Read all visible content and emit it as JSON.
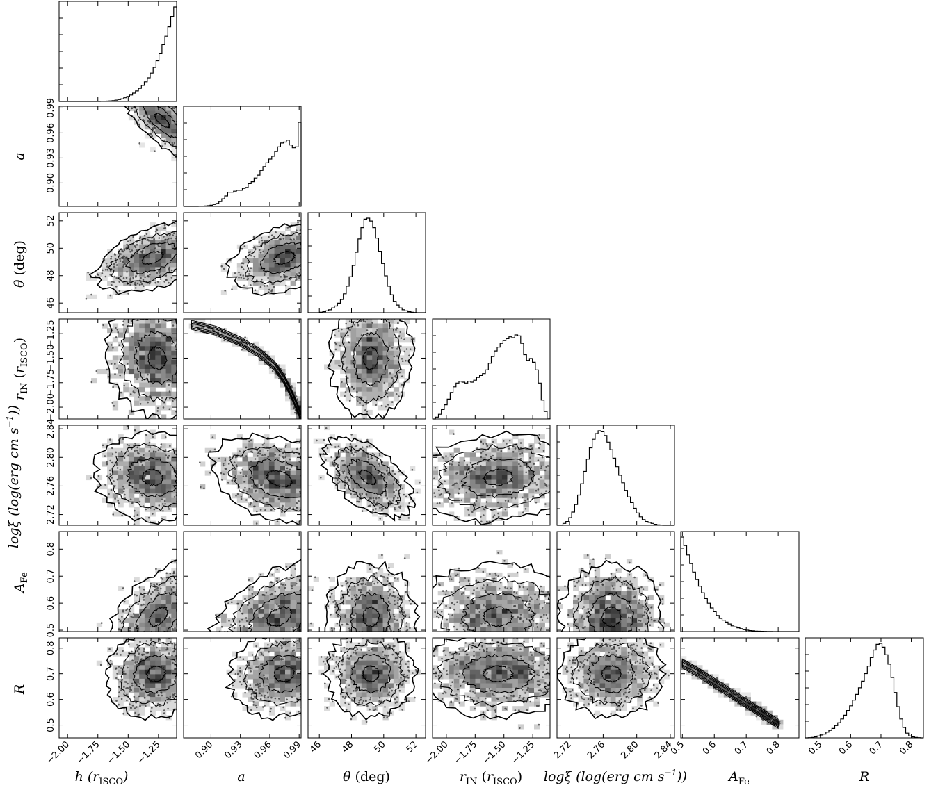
{
  "chart_data": {
    "type": "corner",
    "grid": false,
    "parameters": [
      {
        "key": "h",
        "label": "h (r_ISCO)",
        "range": [
          -2.07,
          -1.1
        ],
        "ticks": [
          -2.0,
          -1.75,
          -1.5,
          -1.25
        ],
        "tick_labels": [
          "−2.00",
          "−1.75",
          "−1.50",
          "−1.25"
        ],
        "hist": [
          0.0,
          0.0,
          0.0,
          0.0,
          0.0,
          0.0,
          0.0,
          0.0,
          0.0,
          0.0,
          0.0,
          0.0,
          0.0,
          0.0,
          0.002,
          0.002,
          0.004,
          0.006,
          0.009,
          0.014,
          0.02,
          0.028,
          0.039,
          0.052,
          0.068,
          0.088,
          0.111,
          0.138,
          0.17,
          0.207,
          0.25,
          0.3,
          0.36,
          0.43,
          0.51,
          0.6,
          0.69,
          0.79,
          0.9,
          1.0
        ]
      },
      {
        "key": "a",
        "label": "a",
        "range": [
          0.872,
          0.992
        ],
        "ticks": [
          0.9,
          0.93,
          0.96,
          0.99
        ],
        "tick_labels": [
          "0.90",
          "0.93",
          "0.96",
          "0.99"
        ],
        "hist": [
          0.0,
          0.0,
          0.0,
          0.0,
          0.0,
          0.002,
          0.003,
          0.005,
          0.007,
          0.012,
          0.02,
          0.03,
          0.05,
          0.08,
          0.11,
          0.15,
          0.15,
          0.16,
          0.17,
          0.17,
          0.19,
          0.2,
          0.24,
          0.26,
          0.3,
          0.33,
          0.38,
          0.42,
          0.46,
          0.5,
          0.53,
          0.58,
          0.63,
          0.67,
          0.68,
          0.7,
          0.65,
          0.62,
          0.63,
          0.89
        ]
      },
      {
        "key": "theta",
        "label": "θ (deg)",
        "range": [
          45.3,
          52.6
        ],
        "ticks": [
          46,
          48,
          50,
          52
        ],
        "tick_labels": [
          "46",
          "48",
          "50",
          "52"
        ],
        "hist": [
          0.0,
          0.0,
          0.0,
          0.0,
          0.005,
          0.01,
          0.02,
          0.03,
          0.05,
          0.07,
          0.1,
          0.14,
          0.2,
          0.28,
          0.38,
          0.5,
          0.64,
          0.78,
          0.9,
          0.99,
          1.0,
          0.97,
          0.9,
          0.79,
          0.65,
          0.52,
          0.39,
          0.28,
          0.19,
          0.12,
          0.08,
          0.05,
          0.03,
          0.02,
          0.01,
          0.005,
          0.002,
          0.0,
          0.0,
          0.0
        ]
      },
      {
        "key": "rin",
        "label": "r_IN (r_ISCO)",
        "range": [
          -2.12,
          -1.1
        ],
        "ticks": [
          -2.0,
          -1.75,
          -1.5,
          -1.25
        ],
        "tick_labels": [
          "−2.00",
          "−1.75",
          "−1.50",
          "−1.25"
        ],
        "hist": [
          0.0,
          0.02,
          0.05,
          0.1,
          0.15,
          0.21,
          0.28,
          0.34,
          0.38,
          0.4,
          0.39,
          0.38,
          0.4,
          0.39,
          0.41,
          0.44,
          0.46,
          0.48,
          0.52,
          0.59,
          0.66,
          0.72,
          0.76,
          0.8,
          0.83,
          0.85,
          0.87,
          0.86,
          0.89,
          0.88,
          0.8,
          0.68,
          0.62,
          0.64,
          0.6,
          0.52,
          0.38,
          0.2,
          0.08,
          0.01
        ]
      },
      {
        "key": "xi",
        "label": "logξ (log(erg cm s⁻¹))",
        "range": [
          2.705,
          2.845
        ],
        "ticks": [
          2.72,
          2.76,
          2.8,
          2.84
        ],
        "tick_labels": [
          "2.72",
          "2.76",
          "2.80",
          "2.84"
        ],
        "hist": [
          0.0,
          0.0,
          0.02,
          0.04,
          0.08,
          0.14,
          0.22,
          0.32,
          0.44,
          0.57,
          0.7,
          0.82,
          0.91,
          0.97,
          1.0,
          0.99,
          0.95,
          0.88,
          0.8,
          0.71,
          0.62,
          0.53,
          0.45,
          0.37,
          0.3,
          0.24,
          0.18,
          0.13,
          0.09,
          0.06,
          0.04,
          0.03,
          0.02,
          0.01,
          0.005,
          0.002,
          0.0,
          0.0,
          0.0,
          0.0
        ]
      },
      {
        "key": "afe",
        "label": "A_Fe",
        "range": [
          0.495,
          0.865
        ],
        "ticks": [
          0.5,
          0.6,
          0.7,
          0.8
        ],
        "tick_labels": [
          "0.5",
          "0.6",
          "0.7",
          "0.8"
        ],
        "hist": [
          1.0,
          0.91,
          0.81,
          0.72,
          0.63,
          0.55,
          0.48,
          0.41,
          0.35,
          0.3,
          0.25,
          0.21,
          0.17,
          0.14,
          0.12,
          0.1,
          0.08,
          0.06,
          0.05,
          0.04,
          0.03,
          0.02,
          0.015,
          0.01,
          0.008,
          0.005,
          0.004,
          0.003,
          0.002,
          0.001,
          0.001,
          0.0,
          0.0,
          0.0,
          0.0,
          0.0,
          0.0,
          0.0,
          0.0,
          0.0
        ]
      },
      {
        "key": "R",
        "label": "R",
        "range": [
          0.45,
          0.84
        ],
        "ticks": [
          0.5,
          0.6,
          0.7,
          0.8
        ],
        "tick_labels": [
          "0.5",
          "0.6",
          "0.7",
          "0.8"
        ],
        "hist": [
          0.0,
          0.002,
          0.005,
          0.01,
          0.02,
          0.03,
          0.04,
          0.06,
          0.08,
          0.1,
          0.13,
          0.16,
          0.2,
          0.24,
          0.29,
          0.34,
          0.4,
          0.46,
          0.53,
          0.6,
          0.68,
          0.76,
          0.85,
          0.93,
          0.99,
          1.0,
          0.96,
          0.88,
          0.78,
          0.64,
          0.48,
          0.33,
          0.2,
          0.11,
          0.05,
          0.02,
          0.01,
          0.005,
          0.002,
          0.0
        ]
      }
    ],
    "posterior_2d": {
      "a|h": {
        "mean": [
          -1.22,
          0.975
        ],
        "sd": [
          0.12,
          0.017
        ],
        "rho": -0.75
      },
      "theta|h": {
        "mean": [
          -1.3,
          49.3
        ],
        "sd": [
          0.17,
          0.9
        ],
        "rho": 0.45
      },
      "theta|a": {
        "mean": [
          0.975,
          49.3
        ],
        "sd": [
          0.02,
          0.9
        ],
        "rho": 0.35
      },
      "rin|h": {
        "mean": [
          -1.26,
          -1.5
        ],
        "sd": [
          0.15,
          0.22
        ],
        "rho": -0.1
      },
      "rin|theta": {
        "mean": [
          49.2,
          -1.5
        ],
        "sd": [
          0.9,
          0.22
        ],
        "rho": 0.05
      },
      "xi|h": {
        "mean": [
          -1.3,
          2.772
        ],
        "sd": [
          0.17,
          0.022
        ],
        "rho": -0.1
      },
      "xi|a": {
        "mean": [
          0.97,
          2.77
        ],
        "sd": [
          0.025,
          0.022
        ],
        "rho": -0.3
      },
      "xi|theta": {
        "mean": [
          49.0,
          2.772
        ],
        "sd": [
          1.0,
          0.02
        ],
        "rho": -0.55
      },
      "xi|rin": {
        "mean": [
          -1.55,
          2.772
        ],
        "sd": [
          0.25,
          0.022
        ],
        "rho": 0.1
      },
      "afe|h": {
        "mean": [
          -1.25,
          0.55
        ],
        "sd": [
          0.15,
          0.07
        ],
        "rho": 0.5
      },
      "afe|a": {
        "mean": [
          0.97,
          0.55
        ],
        "sd": [
          0.025,
          0.07
        ],
        "rho": 0.4
      },
      "afe|theta": {
        "mean": [
          49.2,
          0.55
        ],
        "sd": [
          1.0,
          0.07
        ],
        "rho": 0.0
      },
      "afe|rin": {
        "mean": [
          -1.55,
          0.55
        ],
        "sd": [
          0.25,
          0.07
        ],
        "rho": 0.0
      },
      "afe|xi": {
        "mean": [
          2.77,
          0.55
        ],
        "sd": [
          0.022,
          0.07
        ],
        "rho": 0.0
      },
      "R|h": {
        "mean": [
          -1.27,
          0.7
        ],
        "sd": [
          0.15,
          0.06
        ],
        "rho": 0.1
      },
      "R|a": {
        "mean": [
          0.975,
          0.7
        ],
        "sd": [
          0.02,
          0.06
        ],
        "rho": 0.1
      },
      "R|theta": {
        "mean": [
          49.2,
          0.7
        ],
        "sd": [
          1.0,
          0.06
        ],
        "rho": 0.0
      },
      "R|rin": {
        "mean": [
          -1.55,
          0.7
        ],
        "sd": [
          0.25,
          0.06
        ],
        "rho": 0.0
      },
      "R|xi": {
        "mean": [
          2.77,
          0.7
        ],
        "sd": [
          0.022,
          0.06
        ],
        "rho": 0.0
      },
      "rin|a": {
        "curve": {
          "x": [
            0.88,
            0.905,
            0.93,
            0.95,
            0.965,
            0.975,
            0.982,
            0.988,
            0.992
          ],
          "y": [
            -1.16,
            -1.22,
            -1.33,
            -1.45,
            -1.58,
            -1.72,
            -1.86,
            -2.0,
            -2.1
          ]
        }
      },
      "R|afe": {
        "curve": {
          "x": [
            0.5,
            0.55,
            0.6,
            0.65,
            0.7,
            0.75,
            0.8
          ],
          "y": [
            0.74,
            0.705,
            0.665,
            0.625,
            0.585,
            0.545,
            0.505
          ]
        }
      }
    }
  }
}
